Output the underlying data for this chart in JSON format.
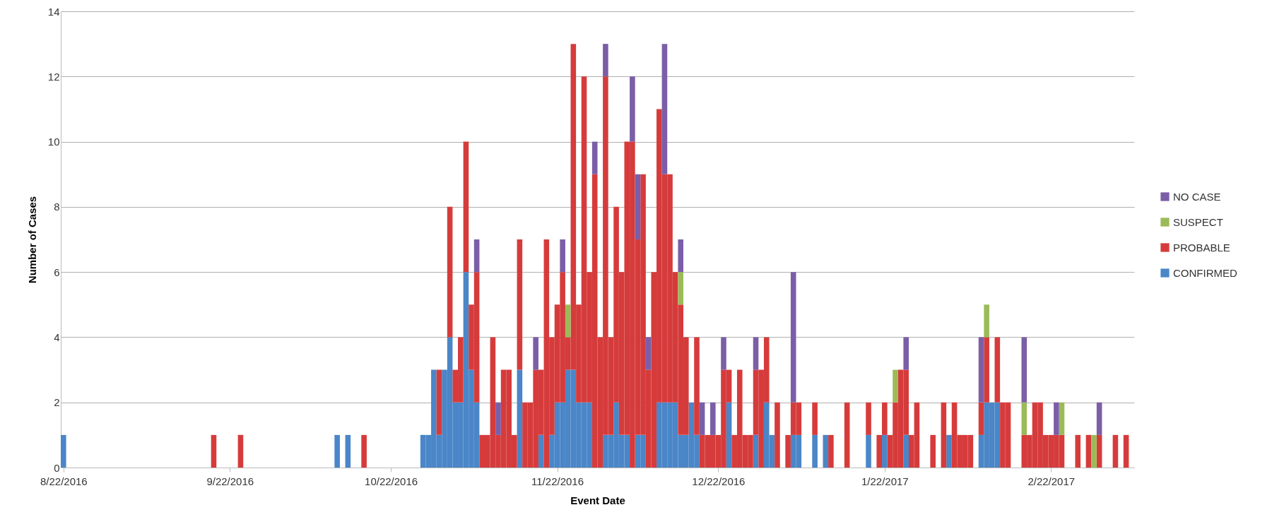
{
  "chart_data": {
    "type": "bar",
    "stacked": true,
    "xlabel": "Event Date",
    "ylabel": "Number of Cases",
    "legend": "right",
    "grid": "y",
    "xlim": [
      "2016-08-21T12:00",
      "2017-03-09T12:00"
    ],
    "xticks": [
      {
        "value": "2016-08-22",
        "label": "8/22/2016"
      },
      {
        "value": "2016-09-22",
        "label": "9/22/2016"
      },
      {
        "value": "2016-10-22",
        "label": "10/22/2016"
      },
      {
        "value": "2016-11-22",
        "label": "11/22/2016"
      },
      {
        "value": "2016-12-22",
        "label": "12/22/2016"
      },
      {
        "value": "2017-01-22",
        "label": "1/22/2017"
      },
      {
        "value": "2017-02-22",
        "label": "2/22/2017"
      }
    ],
    "ylim": [
      0,
      14
    ],
    "yticks": [
      0,
      2,
      4,
      6,
      8,
      10,
      12,
      14
    ],
    "x": [
      "2016-08-22",
      "2016-09-19",
      "2016-09-24",
      "2016-10-12",
      "2016-10-14",
      "2016-10-17",
      "2016-10-28",
      "2016-10-29",
      "2016-10-30",
      "2016-10-31",
      "2016-11-01",
      "2016-11-02",
      "2016-11-03",
      "2016-11-04",
      "2016-11-05",
      "2016-11-06",
      "2016-11-07",
      "2016-11-08",
      "2016-11-09",
      "2016-11-10",
      "2016-11-11",
      "2016-11-12",
      "2016-11-13",
      "2016-11-14",
      "2016-11-15",
      "2016-11-16",
      "2016-11-17",
      "2016-11-18",
      "2016-11-19",
      "2016-11-20",
      "2016-11-21",
      "2016-11-22",
      "2016-11-23",
      "2016-11-24",
      "2016-11-25",
      "2016-11-26",
      "2016-11-27",
      "2016-11-28",
      "2016-11-29",
      "2016-11-30",
      "2016-12-01",
      "2016-12-02",
      "2016-12-03",
      "2016-12-04",
      "2016-12-05",
      "2016-12-06",
      "2016-12-07",
      "2016-12-08",
      "2016-12-09",
      "2016-12-10",
      "2016-12-11",
      "2016-12-12",
      "2016-12-13",
      "2016-12-14",
      "2016-12-15",
      "2016-12-16",
      "2016-12-17",
      "2016-12-18",
      "2016-12-19",
      "2016-12-20",
      "2016-12-21",
      "2016-12-22",
      "2016-12-23",
      "2016-12-24",
      "2016-12-25",
      "2016-12-26",
      "2016-12-27",
      "2016-12-28",
      "2016-12-29",
      "2016-12-30",
      "2016-12-31",
      "2017-01-01",
      "2017-01-02",
      "2017-01-04",
      "2017-01-05",
      "2017-01-06",
      "2017-01-09",
      "2017-01-11",
      "2017-01-12",
      "2017-01-15",
      "2017-01-19",
      "2017-01-21",
      "2017-01-22",
      "2017-01-23",
      "2017-01-24",
      "2017-01-25",
      "2017-01-26",
      "2017-01-27",
      "2017-01-28",
      "2017-01-31",
      "2017-02-02",
      "2017-02-03",
      "2017-02-04",
      "2017-02-05",
      "2017-02-06",
      "2017-02-07",
      "2017-02-09",
      "2017-02-10",
      "2017-02-11",
      "2017-02-12",
      "2017-02-13",
      "2017-02-14",
      "2017-02-17",
      "2017-02-18",
      "2017-02-19",
      "2017-02-20",
      "2017-02-21",
      "2017-02-22",
      "2017-02-23",
      "2017-02-24",
      "2017-02-27",
      "2017-03-01",
      "2017-03-02",
      "2017-03-03",
      "2017-03-06",
      "2017-03-08"
    ],
    "series": [
      {
        "name": "CONFIRMED",
        "color": "#4a86c8",
        "values": [
          1,
          null,
          null,
          1,
          1,
          null,
          1,
          1,
          3,
          1,
          3,
          4,
          2,
          2,
          6,
          3,
          2,
          null,
          null,
          null,
          null,
          null,
          null,
          null,
          3,
          null,
          null,
          null,
          1,
          null,
          1,
          2,
          2,
          3,
          3,
          2,
          2,
          2,
          null,
          null,
          1,
          1,
          2,
          1,
          1,
          null,
          1,
          1,
          null,
          null,
          2,
          2,
          2,
          2,
          1,
          1,
          2,
          1,
          null,
          null,
          null,
          null,
          null,
          2,
          null,
          null,
          null,
          null,
          1,
          null,
          2,
          1,
          null,
          null,
          1,
          1,
          1,
          1,
          null,
          null,
          1,
          null,
          1,
          null,
          null,
          null,
          1,
          null,
          null,
          null,
          null,
          1,
          null,
          null,
          null,
          null,
          1,
          2,
          2,
          2,
          null,
          null,
          null,
          null,
          null,
          null,
          null,
          null,
          null,
          null,
          null,
          null,
          null,
          null,
          null,
          null
        ]
      },
      {
        "name": "PROBABLE",
        "color": "#d63b3b",
        "values": [
          null,
          1,
          1,
          null,
          null,
          1,
          null,
          null,
          null,
          2,
          null,
          4,
          1,
          2,
          4,
          2,
          4,
          1,
          1,
          4,
          1,
          3,
          3,
          1,
          4,
          2,
          2,
          3,
          2,
          7,
          3,
          3,
          4,
          1,
          10,
          3,
          10,
          4,
          9,
          4,
          11,
          3,
          6,
          5,
          9,
          10,
          6,
          8,
          3,
          6,
          9,
          7,
          7,
          4,
          4,
          3,
          null,
          3,
          1,
          1,
          1,
          1,
          3,
          1,
          1,
          3,
          1,
          1,
          2,
          3,
          2,
          null,
          2,
          1,
          1,
          1,
          1,
          null,
          1,
          2,
          1,
          1,
          1,
          1,
          2,
          3,
          2,
          1,
          2,
          1,
          2,
          null,
          2,
          1,
          1,
          1,
          1,
          2,
          null,
          2,
          2,
          2,
          1,
          1,
          2,
          2,
          1,
          1,
          1,
          1,
          1,
          1,
          null,
          1,
          1,
          1
        ]
      },
      {
        "name": "SUSPECT",
        "color": "#9bbb59",
        "values": [
          null,
          null,
          null,
          null,
          null,
          null,
          null,
          null,
          null,
          null,
          null,
          null,
          null,
          null,
          null,
          null,
          null,
          null,
          null,
          null,
          null,
          null,
          null,
          null,
          null,
          null,
          null,
          null,
          null,
          null,
          null,
          null,
          null,
          1,
          null,
          null,
          null,
          null,
          null,
          null,
          null,
          null,
          null,
          null,
          null,
          null,
          null,
          null,
          null,
          null,
          null,
          null,
          null,
          null,
          1,
          null,
          null,
          null,
          null,
          null,
          null,
          null,
          null,
          null,
          null,
          null,
          null,
          null,
          null,
          null,
          null,
          null,
          null,
          null,
          null,
          null,
          null,
          null,
          null,
          null,
          null,
          null,
          null,
          null,
          1,
          null,
          null,
          null,
          null,
          null,
          null,
          null,
          null,
          null,
          null,
          null,
          null,
          1,
          null,
          null,
          null,
          null,
          1,
          null,
          null,
          null,
          null,
          null,
          null,
          1,
          null,
          null,
          1,
          null,
          null,
          null
        ]
      },
      {
        "name": "NO CASE",
        "color": "#7b5ea7",
        "values": [
          null,
          null,
          null,
          null,
          null,
          null,
          null,
          null,
          null,
          null,
          null,
          null,
          null,
          null,
          null,
          null,
          1,
          null,
          null,
          null,
          1,
          null,
          null,
          null,
          null,
          null,
          null,
          1,
          null,
          null,
          null,
          null,
          1,
          null,
          null,
          null,
          null,
          null,
          1,
          null,
          1,
          null,
          null,
          null,
          null,
          2,
          2,
          null,
          1,
          null,
          null,
          4,
          null,
          null,
          1,
          null,
          null,
          null,
          1,
          null,
          1,
          null,
          1,
          null,
          null,
          null,
          null,
          null,
          1,
          null,
          null,
          null,
          null,
          null,
          4,
          null,
          null,
          null,
          null,
          null,
          null,
          null,
          null,
          null,
          null,
          null,
          1,
          null,
          null,
          null,
          null,
          null,
          null,
          null,
          null,
          null,
          2,
          null,
          null,
          null,
          null,
          null,
          2,
          null,
          null,
          null,
          null,
          null,
          1,
          null,
          null,
          null,
          null,
          1,
          null,
          null
        ]
      }
    ]
  }
}
